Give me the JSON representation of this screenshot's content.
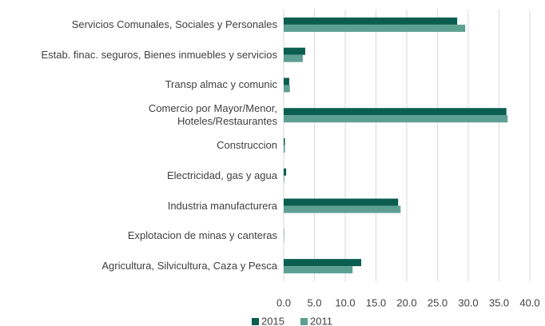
{
  "chart_data": {
    "type": "barh",
    "categories": [
      "Servicios Comunales, Sociales y Personales",
      "Estab. finac. seguros, Bienes inmuebles y servicios",
      "Transp almac y comunic",
      "Comercio por Mayor/Menor,\nHoteles/Restaurantes",
      "Construccion",
      "Electricidad, gas y agua",
      "Industria manufacturera",
      "Explotacion de minas y canteras",
      "Agricultura, Silvicultura, Caza y Pesca"
    ],
    "series": [
      {
        "name": "2015",
        "color": "#0b5e4f",
        "values": [
          28.2,
          3.5,
          0.9,
          36.2,
          0.2,
          0.4,
          18.6,
          0.05,
          12.6
        ]
      },
      {
        "name": "2011",
        "color": "#5c9f93",
        "values": [
          29.5,
          3.1,
          1.0,
          36.4,
          0.2,
          0.1,
          19.0,
          0.05,
          11.2
        ]
      }
    ],
    "xlim": [
      0,
      40
    ],
    "xticks": [
      {
        "value": 0,
        "label": "0.0"
      },
      {
        "value": 5,
        "label": "5.0"
      },
      {
        "value": 10,
        "label": "10.0"
      },
      {
        "value": 15,
        "label": "15.0"
      },
      {
        "value": 20,
        "label": "20.0"
      },
      {
        "value": 25,
        "label": "25.0"
      },
      {
        "value": 30,
        "label": "30.0"
      },
      {
        "value": 35,
        "label": "35.0"
      },
      {
        "value": 40,
        "label": "40.0"
      }
    ],
    "grid": true,
    "legend": "bottom"
  }
}
